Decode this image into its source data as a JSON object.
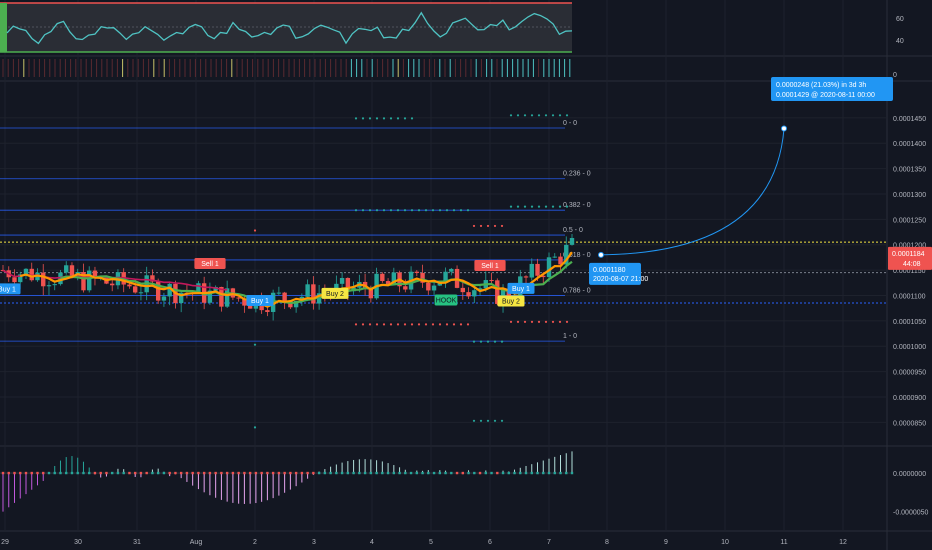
{
  "chart_data": {
    "type": "candlestick",
    "x_ticks": [
      "29",
      "30",
      "31",
      "Aug",
      "2",
      "3",
      "4",
      "5",
      "6",
      "7",
      "8",
      "9",
      "10",
      "11",
      "12"
    ],
    "price_axis": {
      "ticks": [
        "0.0001450",
        "0.0001400",
        "0.0001350",
        "0.0001300",
        "0.0001250",
        "0.0001200",
        "0.0001150",
        "0.0001100",
        "0.0001050",
        "0.0001000",
        "0.0000950",
        "0.0000900",
        "0.0000850"
      ],
      "ylim": [
        8.25e-05,
        0.0001495
      ],
      "current_price": "0.0001184",
      "countdown": "44:08"
    },
    "rsi_axis": {
      "ticks": [
        "60",
        "40"
      ],
      "ylim": [
        29,
        74
      ]
    },
    "volume_axis": {
      "ticks": [
        "0"
      ]
    },
    "macd_axis": {
      "ticks": [
        "0.0000000",
        "-0.0000050"
      ],
      "ylim": [
        -7.5e-06,
        3.5e-06
      ]
    },
    "fib_levels": [
      {
        "label": "0 - 0",
        "value": 0.000143
      },
      {
        "label": "0.236 - 0",
        "value": 0.000133
      },
      {
        "label": "0.382 - 0",
        "value": 0.0001268
      },
      {
        "label": "0.5 - 0",
        "value": 0.0001219
      },
      {
        "label": "0.618 - 0",
        "value": 0.000117
      },
      {
        "label": "0.786 - 0",
        "value": 0.00011
      },
      {
        "label": "1 - 0",
        "value": 0.000101
      }
    ],
    "extra_lines": [
      0.0001205,
      0.0001145,
      0.0001085
    ],
    "signals": [
      {
        "text": "Buy 1",
        "kind": "buy",
        "x": 7,
        "price": 0.0001112
      },
      {
        "text": "Sell 1",
        "kind": "sell",
        "x": 210,
        "price": 0.0001162
      },
      {
        "text": "Buy 1",
        "kind": "buy",
        "x": 260,
        "price": 0.0001089
      },
      {
        "text": "Buy 2",
        "kind": "buy2",
        "x": 335,
        "price": 0.0001103
      },
      {
        "text": "HOOK",
        "kind": "hook",
        "x": 446,
        "price": 0.000109
      },
      {
        "text": "Sell 1",
        "kind": "sell",
        "x": 490,
        "price": 0.0001158
      },
      {
        "text": "Buy 1",
        "kind": "buy",
        "x": 521,
        "price": 0.0001113
      },
      {
        "text": "Buy 2",
        "kind": "buy2",
        "x": 511,
        "price": 0.0001088
      }
    ],
    "projection": {
      "start_label": "0.0001180",
      "start_date": "2020-08-07 21:00",
      "target_label": "0.0000248 (21.03%) in 3d 3h",
      "target_detail": "0.0001429 @ 2020-08-11  00:00",
      "start_price": 0.000118,
      "target_price": 0.0001429
    },
    "colors": {
      "background": "#131722",
      "up": "#26a69a",
      "down": "#ef5350",
      "fib": "#2962ff",
      "current_price": "#ef5350",
      "dotted_price": "#f5e642",
      "rsi": "#4fc3c3",
      "ma_fast": "#ff9800",
      "ma_slow": "#4caf50",
      "ma_long": "#c2185b",
      "projection": "#2196f3"
    }
  }
}
